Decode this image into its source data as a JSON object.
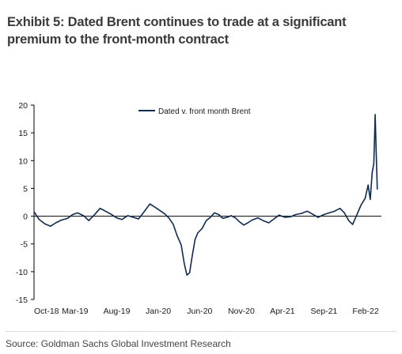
{
  "header": {
    "title": "Exhibit 5: Dated Brent continues to trade at a significant premium to the front-month contract"
  },
  "footer": {
    "source": "Source: Goldman Sachs Global Investment Research"
  },
  "colors": {
    "series": "#0f2b52",
    "zero_line": "#000000",
    "axis": "#000000"
  },
  "chart_data": {
    "type": "line",
    "title": "",
    "xlabel": "",
    "ylabel": "",
    "ylim": [
      -15,
      20
    ],
    "yticks": [
      -15,
      -10,
      -5,
      0,
      5,
      10,
      15,
      20
    ],
    "xlim": [
      "2018-10-01",
      "2022-03-31"
    ],
    "xticks": [
      {
        "date": "2018-10-01",
        "label": "Oct-18"
      },
      {
        "date": "2019-03-01",
        "label": "Mar-19"
      },
      {
        "date": "2019-08-01",
        "label": "Aug-19"
      },
      {
        "date": "2020-01-01",
        "label": "Jan-20"
      },
      {
        "date": "2020-06-01",
        "label": "Jun-20"
      },
      {
        "date": "2020-11-01",
        "label": "Nov-20"
      },
      {
        "date": "2021-04-01",
        "label": "Apr-21"
      },
      {
        "date": "2021-09-01",
        "label": "Sep-21"
      },
      {
        "date": "2022-02-01",
        "label": "Feb-22"
      }
    ],
    "legend_position": "top-center",
    "grid": false,
    "series": [
      {
        "name": "Dated v. front month Brent",
        "points": [
          [
            "2018-10-01",
            0.8
          ],
          [
            "2018-10-20",
            -0.6
          ],
          [
            "2018-11-10",
            -1.4
          ],
          [
            "2018-12-01",
            -1.8
          ],
          [
            "2018-12-20",
            -1.2
          ],
          [
            "2019-01-10",
            -0.7
          ],
          [
            "2019-02-01",
            -0.4
          ],
          [
            "2019-02-20",
            0.3
          ],
          [
            "2019-03-10",
            0.6
          ],
          [
            "2019-04-01",
            0.1
          ],
          [
            "2019-04-20",
            -0.8
          ],
          [
            "2019-05-10",
            0.2
          ],
          [
            "2019-06-01",
            1.4
          ],
          [
            "2019-06-20",
            0.9
          ],
          [
            "2019-07-10",
            0.4
          ],
          [
            "2019-08-01",
            -0.3
          ],
          [
            "2019-08-20",
            -0.6
          ],
          [
            "2019-09-10",
            0.1
          ],
          [
            "2019-10-01",
            -0.2
          ],
          [
            "2019-10-20",
            -0.5
          ],
          [
            "2019-11-10",
            0.8
          ],
          [
            "2019-12-01",
            2.2
          ],
          [
            "2019-12-20",
            1.6
          ],
          [
            "2020-01-10",
            0.9
          ],
          [
            "2020-01-25",
            0.4
          ],
          [
            "2020-02-10",
            -0.4
          ],
          [
            "2020-02-25",
            -1.5
          ],
          [
            "2020-03-10",
            -3.5
          ],
          [
            "2020-03-25",
            -5.2
          ],
          [
            "2020-04-05",
            -8.5
          ],
          [
            "2020-04-15",
            -10.6
          ],
          [
            "2020-04-25",
            -10.2
          ],
          [
            "2020-05-05",
            -7.0
          ],
          [
            "2020-05-15",
            -4.2
          ],
          [
            "2020-05-25",
            -3.0
          ],
          [
            "2020-06-10",
            -2.2
          ],
          [
            "2020-06-25",
            -0.8
          ],
          [
            "2020-07-10",
            -0.2
          ],
          [
            "2020-07-25",
            0.6
          ],
          [
            "2020-08-10",
            0.3
          ],
          [
            "2020-08-25",
            -0.4
          ],
          [
            "2020-09-10",
            -0.2
          ],
          [
            "2020-09-25",
            0.1
          ],
          [
            "2020-10-10",
            -0.3
          ],
          [
            "2020-10-25",
            -1.0
          ],
          [
            "2020-11-10",
            -1.6
          ],
          [
            "2020-11-25",
            -1.2
          ],
          [
            "2020-12-10",
            -0.7
          ],
          [
            "2021-01-01",
            -0.3
          ],
          [
            "2021-01-20",
            -0.8
          ],
          [
            "2021-02-10",
            -1.2
          ],
          [
            "2021-03-01",
            -0.5
          ],
          [
            "2021-03-20",
            0.2
          ],
          [
            "2021-04-10",
            -0.2
          ],
          [
            "2021-05-01",
            -0.1
          ],
          [
            "2021-05-20",
            0.3
          ],
          [
            "2021-06-10",
            0.5
          ],
          [
            "2021-07-01",
            0.9
          ],
          [
            "2021-07-20",
            0.4
          ],
          [
            "2021-08-10",
            -0.2
          ],
          [
            "2021-09-01",
            0.3
          ],
          [
            "2021-09-20",
            0.6
          ],
          [
            "2021-10-10",
            0.9
          ],
          [
            "2021-10-30",
            1.4
          ],
          [
            "2021-11-15",
            0.6
          ],
          [
            "2021-12-01",
            -0.8
          ],
          [
            "2021-12-15",
            -1.5
          ],
          [
            "2022-01-01",
            0.4
          ],
          [
            "2022-01-15",
            2.0
          ],
          [
            "2022-01-30",
            3.2
          ],
          [
            "2022-02-10",
            5.6
          ],
          [
            "2022-02-18",
            3.0
          ],
          [
            "2022-02-25",
            7.8
          ],
          [
            "2022-03-03",
            9.5
          ],
          [
            "2022-03-08",
            18.3
          ],
          [
            "2022-03-12",
            11.0
          ],
          [
            "2022-03-16",
            4.8
          ]
        ]
      }
    ]
  }
}
